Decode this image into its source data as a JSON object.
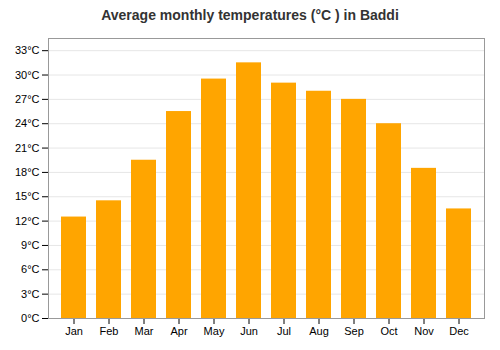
{
  "chart_data": {
    "type": "bar",
    "title": "Average monthly temperatures (°C ) in Baddi",
    "categories": [
      "Jan",
      "Feb",
      "Mar",
      "Apr",
      "May",
      "Jun",
      "Jul",
      "Aug",
      "Sep",
      "Oct",
      "Nov",
      "Dec"
    ],
    "values": [
      12.5,
      14.5,
      19.5,
      25.5,
      29.5,
      31.5,
      29.0,
      28.0,
      27.0,
      24.0,
      18.5,
      13.5
    ],
    "color": "#FFA500",
    "ylim": [
      0,
      34.5
    ],
    "yticks": [
      {
        "value": 0,
        "label": "0°C"
      },
      {
        "value": 3,
        "label": "3°C"
      },
      {
        "value": 6,
        "label": "6°C"
      },
      {
        "value": 9,
        "label": "9°C"
      },
      {
        "value": 12,
        "label": "12°C"
      },
      {
        "value": 15,
        "label": "15°C"
      },
      {
        "value": 18,
        "label": "18°C"
      },
      {
        "value": 21,
        "label": "21°C"
      },
      {
        "value": 24,
        "label": "24°C"
      },
      {
        "value": 27,
        "label": "27°C"
      },
      {
        "value": 30,
        "label": "30°C"
      },
      {
        "value": 33,
        "label": "33°C"
      }
    ],
    "grid": true
  }
}
